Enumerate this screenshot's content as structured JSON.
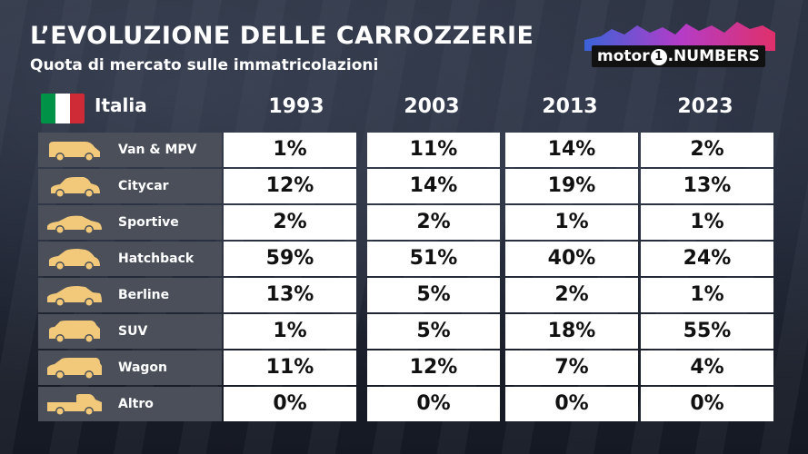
{
  "header": {
    "title": "L’EVOLUZIONE DELLE CARROZZERIE",
    "subtitle": "Quota di mercato sulle immatricolazioni"
  },
  "logo": {
    "word": "motor",
    "number": "1",
    "suffix": ".NUMBERS"
  },
  "country": {
    "name": "Italia",
    "flag_colors": [
      "#009246",
      "#ffffff",
      "#ce2b37"
    ]
  },
  "colors": {
    "accent_icon": "#f2c97a",
    "label_background": "#4a4f59",
    "cell_background": "#ffffff"
  },
  "chart_data": {
    "type": "table",
    "columns": [
      "1993",
      "2003",
      "2013",
      "2023"
    ],
    "rows": [
      {
        "category": "Van & MPV",
        "icon": "van-icon",
        "values": [
          "1%",
          "11%",
          "14%",
          "2%"
        ]
      },
      {
        "category": "Citycar",
        "icon": "citycar-icon",
        "values": [
          "12%",
          "14%",
          "19%",
          "13%"
        ]
      },
      {
        "category": "Sportive",
        "icon": "sports-car-icon",
        "values": [
          "2%",
          "2%",
          "1%",
          "1%"
        ]
      },
      {
        "category": "Hatchback",
        "icon": "hatchback-icon",
        "values": [
          "59%",
          "51%",
          "40%",
          "24%"
        ]
      },
      {
        "category": "Berline",
        "icon": "sedan-icon",
        "values": [
          "13%",
          "5%",
          "2%",
          "1%"
        ]
      },
      {
        "category": "SUV",
        "icon": "suv-icon",
        "values": [
          "1%",
          "5%",
          "18%",
          "55%"
        ]
      },
      {
        "category": "Wagon",
        "icon": "wagon-icon",
        "values": [
          "11%",
          "12%",
          "7%",
          "4%"
        ]
      },
      {
        "category": "Altro",
        "icon": "pickup-icon",
        "values": [
          "0%",
          "0%",
          "0%",
          "0%"
        ]
      }
    ]
  }
}
